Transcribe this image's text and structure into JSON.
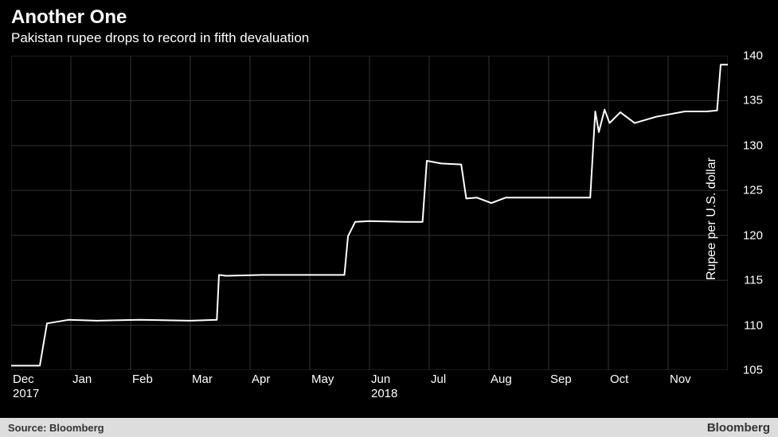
{
  "header": {
    "title": "Another One",
    "subtitle": "Pakistan rupee drops to record in fifth devaluation"
  },
  "chart": {
    "type": "line",
    "ylabel": "Rupee per U.S. dollar",
    "ylim": [
      105,
      140
    ],
    "ytick_step": 5,
    "yticks": [
      105,
      110,
      115,
      120,
      125,
      130,
      135,
      140
    ],
    "background_color": "#000000",
    "grid_color": "#333333",
    "line_color": "#ffffff",
    "line_width": 2,
    "x_categories": [
      "Dec",
      "Jan",
      "Feb",
      "Mar",
      "Apr",
      "May",
      "Jun",
      "Jul",
      "Aug",
      "Sep",
      "Oct",
      "Nov"
    ],
    "x_year_labels": {
      "Dec": "2017",
      "Jun": "2018"
    },
    "text_color": "#ffffff",
    "axis_fontsize": 15,
    "ylabel_fontsize": 16,
    "series": [
      {
        "x": 0.0,
        "y": 105.5
      },
      {
        "x": 0.04,
        "y": 105.5
      },
      {
        "x": 0.05,
        "y": 110.2
      },
      {
        "x": 0.08,
        "y": 110.6
      },
      {
        "x": 0.12,
        "y": 110.5
      },
      {
        "x": 0.18,
        "y": 110.6
      },
      {
        "x": 0.25,
        "y": 110.5
      },
      {
        "x": 0.287,
        "y": 110.6
      },
      {
        "x": 0.29,
        "y": 115.6
      },
      {
        "x": 0.3,
        "y": 115.5
      },
      {
        "x": 0.35,
        "y": 115.6
      },
      {
        "x": 0.42,
        "y": 115.6
      },
      {
        "x": 0.465,
        "y": 115.6
      },
      {
        "x": 0.47,
        "y": 119.9
      },
      {
        "x": 0.48,
        "y": 121.5
      },
      {
        "x": 0.5,
        "y": 121.6
      },
      {
        "x": 0.55,
        "y": 121.5
      },
      {
        "x": 0.574,
        "y": 121.5
      },
      {
        "x": 0.58,
        "y": 128.3
      },
      {
        "x": 0.6,
        "y": 128.0
      },
      {
        "x": 0.628,
        "y": 127.9
      },
      {
        "x": 0.635,
        "y": 124.1
      },
      {
        "x": 0.65,
        "y": 124.2
      },
      {
        "x": 0.67,
        "y": 123.6
      },
      {
        "x": 0.69,
        "y": 124.2
      },
      {
        "x": 0.72,
        "y": 124.2
      },
      {
        "x": 0.78,
        "y": 124.2
      },
      {
        "x": 0.808,
        "y": 124.2
      },
      {
        "x": 0.815,
        "y": 133.8
      },
      {
        "x": 0.82,
        "y": 131.5
      },
      {
        "x": 0.828,
        "y": 134.0
      },
      {
        "x": 0.835,
        "y": 132.5
      },
      {
        "x": 0.85,
        "y": 133.7
      },
      {
        "x": 0.87,
        "y": 132.5
      },
      {
        "x": 0.9,
        "y": 133.2
      },
      {
        "x": 0.94,
        "y": 133.8
      },
      {
        "x": 0.97,
        "y": 133.8
      },
      {
        "x": 0.985,
        "y": 133.9
      },
      {
        "x": 0.99,
        "y": 139.0
      },
      {
        "x": 1.0,
        "y": 139.0
      }
    ]
  },
  "footer": {
    "source": "Source:  Bloomberg",
    "brand": "Bloomberg",
    "background_color": "#dddddd",
    "text_color": "#333333"
  }
}
